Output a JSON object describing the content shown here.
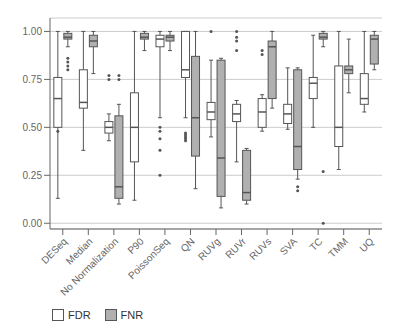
{
  "chart_data": {
    "type": "box",
    "categories": [
      "DESeq",
      "Median",
      "No Normalization",
      "P90",
      "PoissonSeq",
      "QN",
      "RUVg",
      "RUVr",
      "RUVs",
      "SVA",
      "TC",
      "TMM",
      "UQ"
    ],
    "series": [
      {
        "name": "FDR",
        "color": "#ffffff",
        "whislo": [
          0.13,
          0.38,
          0.43,
          0.12,
          0.55,
          0.55,
          0.45,
          0.32,
          0.48,
          0.49,
          0.5,
          0.28,
          0.58
        ],
        "q1": [
          0.5,
          0.6,
          0.47,
          0.32,
          0.92,
          0.76,
          0.54,
          0.53,
          0.5,
          0.52,
          0.65,
          0.4,
          0.62
        ],
        "med": [
          0.65,
          0.63,
          0.5,
          0.5,
          0.96,
          0.8,
          0.58,
          0.57,
          0.58,
          0.57,
          0.73,
          0.5,
          0.65
        ],
        "q3": [
          0.76,
          0.8,
          0.53,
          0.68,
          0.98,
          1.0,
          0.63,
          0.62,
          0.65,
          0.62,
          0.76,
          0.82,
          0.78
        ],
        "whishi": [
          1.0,
          1.0,
          0.57,
          1.0,
          1.0,
          1.0,
          0.85,
          0.64,
          0.67,
          0.81,
          0.98,
          1.0,
          1.0
        ],
        "fliers": [
          [
            0.48
          ],
          [],
          [
            0.75,
            0.77
          ],
          [],
          [
            0.25,
            0.38,
            0.44,
            0.48,
            0.5
          ],
          [
            0.43,
            0.44,
            0.45,
            0.46,
            0.47
          ],
          [
            1.0
          ],
          [
            1.0,
            0.97,
            0.95,
            0.9
          ],
          [
            0.88,
            0.9
          ],
          [],
          [],
          [],
          []
        ]
      },
      {
        "name": "FNR",
        "color": "#b0b0b0",
        "whislo": [
          0.92,
          0.78,
          0.1,
          0.9,
          0.9,
          0.18,
          0.08,
          0.1,
          0.6,
          0.23,
          0.92,
          0.68,
          0.8
        ],
        "q1": [
          0.96,
          0.92,
          0.13,
          0.96,
          0.95,
          0.35,
          0.14,
          0.12,
          0.65,
          0.28,
          0.96,
          0.78,
          0.83
        ],
        "med": [
          0.97,
          0.95,
          0.19,
          0.97,
          0.97,
          0.55,
          0.34,
          0.16,
          0.92,
          0.4,
          0.97,
          0.8,
          0.96
        ],
        "q3": [
          0.99,
          0.98,
          0.56,
          0.99,
          0.98,
          0.87,
          0.85,
          0.38,
          0.95,
          0.8,
          0.99,
          0.82,
          0.98
        ],
        "whishi": [
          1.0,
          1.0,
          0.62,
          1.0,
          1.0,
          1.0,
          0.86,
          0.39,
          1.0,
          0.81,
          1.0,
          0.96,
          1.0
        ],
        "fliers": [
          [
            0.8,
            0.82,
            0.84,
            0.86
          ],
          [],
          [
            0.75,
            0.77
          ],
          [],
          [],
          [],
          [],
          [],
          [],
          [
            0.17,
            0.19
          ],
          [
            0.0,
            0.27
          ],
          [],
          []
        ]
      }
    ],
    "ylim": [
      -0.03,
      1.07
    ],
    "yticks": [
      {
        "value": 0.0,
        "label": "0.00"
      },
      0.25,
      {
        "value": 0.5,
        "label": "0.50"
      },
      0.75,
      {
        "value": 1.0,
        "label": "1.00"
      }
    ],
    "grid": true,
    "legend": "lower left"
  }
}
